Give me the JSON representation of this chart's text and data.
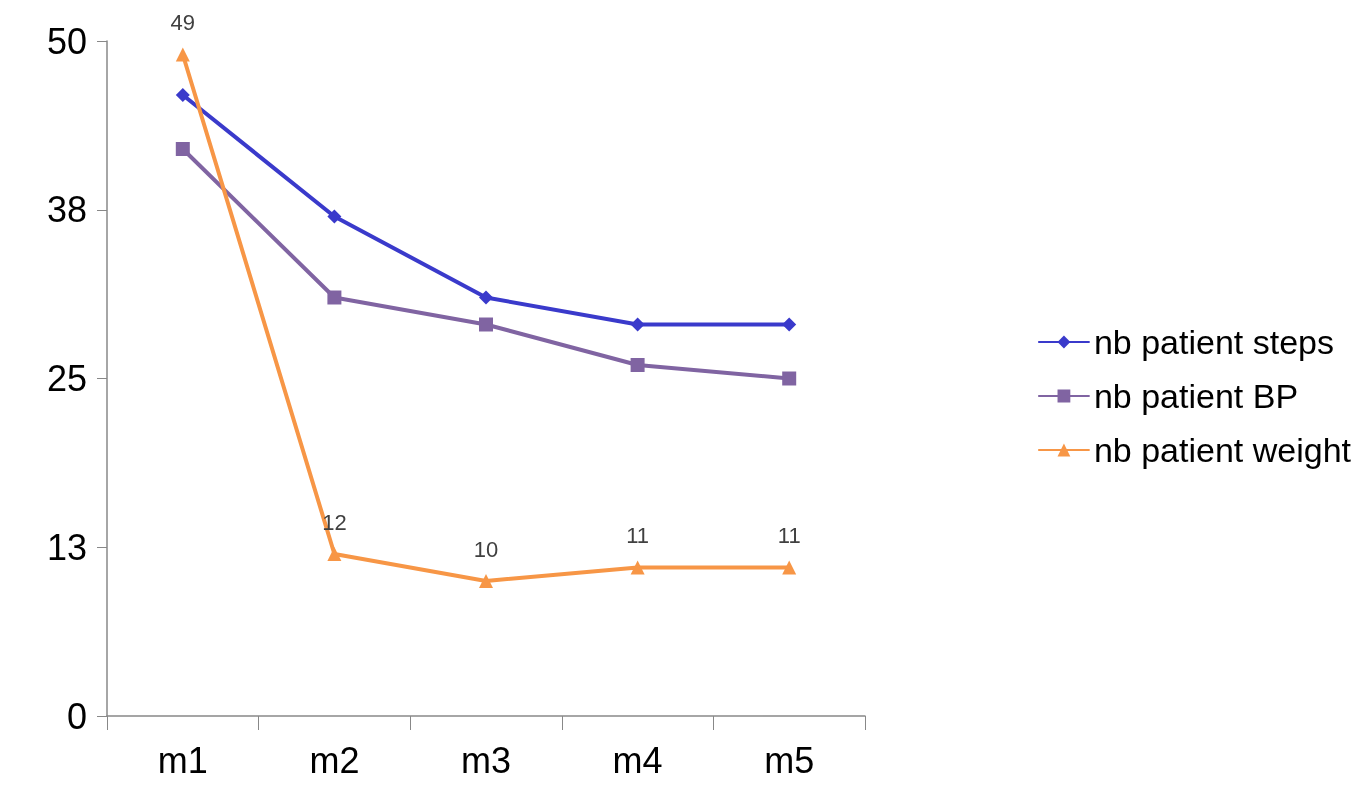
{
  "chart_data": {
    "type": "line",
    "categories": [
      "m1",
      "m2",
      "m3",
      "m4",
      "m5"
    ],
    "series": [
      {
        "name": "nb patient steps",
        "color": "#3a3acb",
        "marker": "diamond",
        "values": [
          46,
          37,
          31,
          29,
          29
        ]
      },
      {
        "name": "nb patient BP",
        "color": "#8064a2",
        "marker": "square",
        "values": [
          42,
          31,
          29,
          26,
          25
        ]
      },
      {
        "name": "nb patient weight",
        "color": "#f79646",
        "marker": "triangle",
        "values": [
          49,
          12,
          10,
          11,
          11
        ],
        "value_labels": [
          "49",
          "12",
          "10",
          "11",
          "11"
        ]
      }
    ],
    "ylim": [
      0,
      50
    ],
    "yticks": [
      0,
      {
        "value": 12.5,
        "label": "13"
      },
      25,
      {
        "value": 37.5,
        "label": "38"
      },
      50
    ],
    "grid": false,
    "legend": "right"
  }
}
